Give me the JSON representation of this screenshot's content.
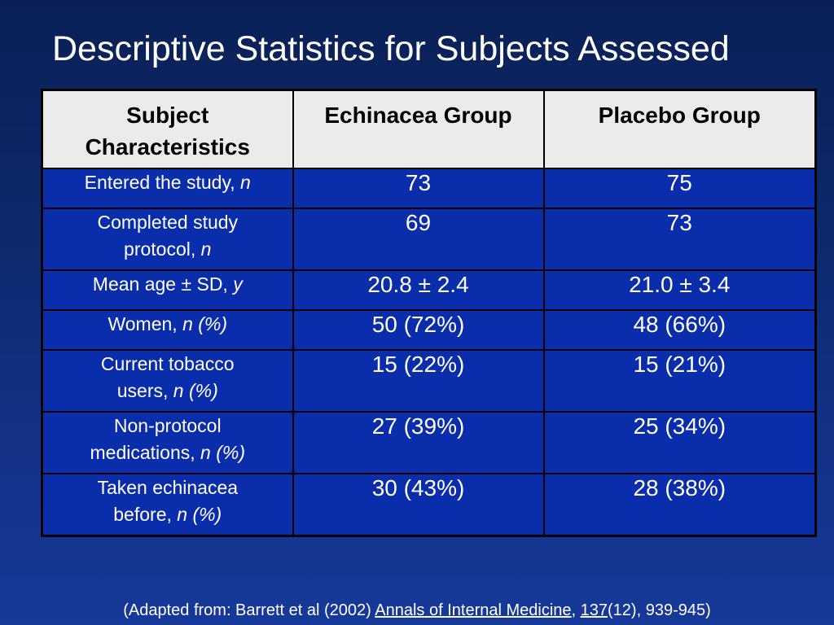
{
  "slide": {
    "title": "Descriptive Statistics for Subjects Assessed"
  },
  "table": {
    "headers": [
      "Subject Characteristics",
      "Echinacea Group",
      "Placebo Group"
    ],
    "rows": [
      {
        "label": "Entered the study, ",
        "unit": "n",
        "echinacea": "73",
        "placebo": "75"
      },
      {
        "label": "Completed study protocol, ",
        "unit": "n",
        "echinacea": "69",
        "placebo": "73"
      },
      {
        "label": "Mean age ± SD, ",
        "unit": "y",
        "echinacea": "20.8 ± 2.4",
        "placebo": "21.0 ± 3.4"
      },
      {
        "label": "Women, ",
        "unit": "n (%)",
        "echinacea": "50 (72%)",
        "placebo": "48 (66%)"
      },
      {
        "label": "Current tobacco users, ",
        "unit": "n (%)",
        "echinacea": "15 (22%)",
        "placebo": "15 (21%)"
      },
      {
        "label": "Non-protocol medications, ",
        "unit": "n (%)",
        "echinacea": "27 (39%)",
        "placebo": "25 (34%)"
      },
      {
        "label": "Taken echinacea before, ",
        "unit": "n (%)",
        "echinacea": "30 (43%)",
        "placebo": "28 (38%)"
      }
    ]
  },
  "citation": {
    "prefix": "(Adapted from: Barrett et al (2002) ",
    "journal": "Annals of Internal Medicine",
    "sep": ", ",
    "volume": "137",
    "suffix": "(12), 939-945)"
  }
}
